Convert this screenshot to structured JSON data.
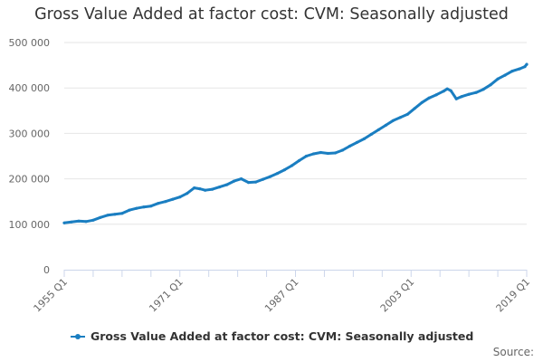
{
  "title": "Gross Value Added at factor cost: CVM: Seasonally adjusted",
  "source_label": "Source:",
  "colors": {
    "series": "#1a7ec1",
    "grid": "#e6e6e6",
    "axis": "#ccd6eb",
    "text": "#333333",
    "tick": "#666666"
  },
  "chart_data": {
    "type": "line",
    "title": "Gross Value Added at factor cost: CVM: Seasonally adjusted",
    "xlabel": "",
    "ylabel": "",
    "ylim": [
      0,
      500000
    ],
    "xlim": [
      1955.0,
      2019.0
    ],
    "yticks": [
      0,
      100000,
      200000,
      300000,
      400000,
      500000
    ],
    "ytick_labels": [
      "0",
      "100 000",
      "200 000",
      "300 000",
      "400 000",
      "500 000"
    ],
    "xticks": [
      1955.0,
      1971.0,
      1987.0,
      2003.0,
      2019.0
    ],
    "xtick_labels": [
      "1955 Q1",
      "1971 Q1",
      "1987 Q1",
      "2003 Q1",
      "2019 Q1"
    ],
    "legend": "bottom-left",
    "series": [
      {
        "name": "Gross Value Added at factor cost: CVM: Seasonally adjusted",
        "x": [
          1955.0,
          1956.0,
          1957.0,
          1958.0,
          1959.0,
          1960.0,
          1961.0,
          1962.0,
          1963.0,
          1964.0,
          1965.0,
          1966.0,
          1967.0,
          1968.0,
          1969.0,
          1970.0,
          1971.0,
          1972.0,
          1973.0,
          1973.75,
          1974.5,
          1975.5,
          1976.5,
          1977.5,
          1978.5,
          1979.5,
          1980.5,
          1981.5,
          1982.5,
          1983.5,
          1984.5,
          1985.5,
          1986.5,
          1987.5,
          1988.5,
          1989.5,
          1990.5,
          1991.5,
          1992.5,
          1993.5,
          1994.5,
          1995.5,
          1996.5,
          1997.5,
          1998.5,
          1999.5,
          2000.5,
          2001.5,
          2002.5,
          2003.5,
          2004.5,
          2005.5,
          2006.5,
          2007.5,
          2008.0,
          2008.5,
          2009.25,
          2010.0,
          2011.0,
          2012.0,
          2013.0,
          2014.0,
          2015.0,
          2016.0,
          2017.0,
          2018.0,
          2018.75,
          2019.0
        ],
        "values": [
          103000,
          105000,
          107000,
          106000,
          109000,
          115000,
          120000,
          122000,
          124000,
          131000,
          135000,
          138000,
          140000,
          146000,
          150000,
          155000,
          160000,
          168000,
          180000,
          178000,
          175000,
          177000,
          182000,
          187000,
          195000,
          200000,
          192000,
          193000,
          199000,
          205000,
          212000,
          220000,
          229000,
          240000,
          250000,
          255000,
          258000,
          256000,
          257000,
          263000,
          272000,
          280000,
          288000,
          298000,
          308000,
          318000,
          328000,
          335000,
          342000,
          355000,
          368000,
          378000,
          385000,
          393000,
          398000,
          394000,
          376000,
          381000,
          386000,
          390000,
          397000,
          407000,
          420000,
          428000,
          437000,
          442000,
          447000,
          452000
        ]
      }
    ]
  }
}
